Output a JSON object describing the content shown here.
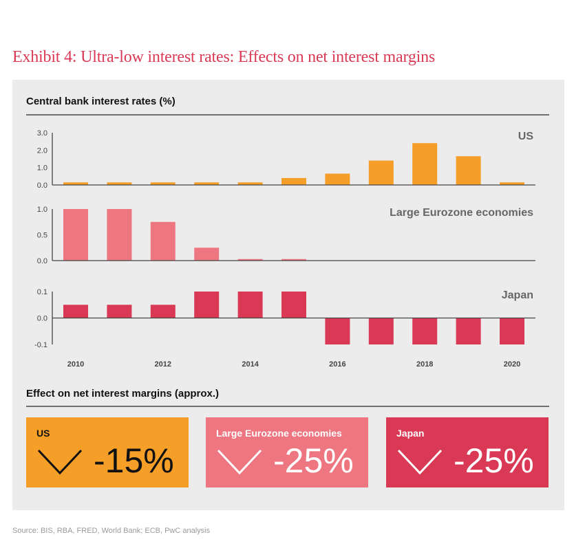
{
  "title": "Exhibit 4: Ultra-low interest rates: Effects on net interest margins",
  "section1_title": "Central bank interest rates (%)",
  "section2_title": "Effect on net interest margins (approx.)",
  "source": "Source: BIS, RBA, FRED, World Bank; ECB, PwC analysis",
  "colors": {
    "us": "#f59e28",
    "euro": "#ee7680",
    "japan": "#d93954",
    "title": "#d93954",
    "panel": "#ececec"
  },
  "chart_data": [
    {
      "type": "bar",
      "title": "US",
      "categories": [
        "2010",
        "2011",
        "2012",
        "2013",
        "2014",
        "2015",
        "2016",
        "2017",
        "2018",
        "2019",
        "2020"
      ],
      "values": [
        0.15,
        0.15,
        0.15,
        0.15,
        0.15,
        0.4,
        0.65,
        1.4,
        2.4,
        1.65,
        0.15
      ],
      "yticks": [
        "0.0",
        "1.0",
        "2.0",
        "3.0"
      ],
      "ytick_values": [
        0,
        1,
        2,
        3
      ],
      "ylim": [
        0,
        3
      ],
      "color": "#f59e28"
    },
    {
      "type": "bar",
      "title": "Large Eurozone economies",
      "categories": [
        "2010",
        "2011",
        "2012",
        "2013",
        "2014",
        "2015",
        "2016",
        "2017",
        "2018",
        "2019",
        "2020"
      ],
      "values": [
        1.0,
        1.0,
        0.75,
        0.25,
        0.03,
        0.03,
        0,
        0,
        0,
        0,
        0
      ],
      "yticks": [
        "0.0",
        "0.5",
        "1.0"
      ],
      "ytick_values": [
        0,
        0.5,
        1
      ],
      "ylim": [
        0,
        1
      ],
      "color": "#ee7680"
    },
    {
      "type": "bar",
      "title": "Japan",
      "categories": [
        "2010",
        "2011",
        "2012",
        "2013",
        "2014",
        "2015",
        "2016",
        "2017",
        "2018",
        "2019",
        "2020"
      ],
      "values": [
        0.05,
        0.05,
        0.05,
        0.1,
        0.1,
        0.1,
        -0.1,
        -0.1,
        -0.1,
        -0.1,
        -0.1
      ],
      "yticks": [
        "-0.1",
        "0.0",
        "0.1"
      ],
      "ytick_values": [
        -0.1,
        0,
        0.1
      ],
      "ylim": [
        -0.1,
        0.1
      ],
      "color": "#d93954"
    }
  ],
  "xtick_labels": [
    {
      "year": "2010",
      "index": 0
    },
    {
      "year": "2012",
      "index": 2
    },
    {
      "year": "2014",
      "index": 4
    },
    {
      "year": "2016",
      "index": 6
    },
    {
      "year": "2018",
      "index": 8
    },
    {
      "year": "2020",
      "index": 10
    }
  ],
  "effects": [
    {
      "label": "US",
      "value": "-15%",
      "bg": "#f59e28",
      "fg": "#111111",
      "arrow": "chevron-down-icon"
    },
    {
      "label": "Large Eurozone economies",
      "value": "-25%",
      "bg": "#ee7680",
      "fg": "#ffffff",
      "arrow": "chevron-down-icon"
    },
    {
      "label": "Japan",
      "value": "-25%",
      "bg": "#d93954",
      "fg": "#ffffff",
      "arrow": "chevron-down-icon"
    }
  ]
}
